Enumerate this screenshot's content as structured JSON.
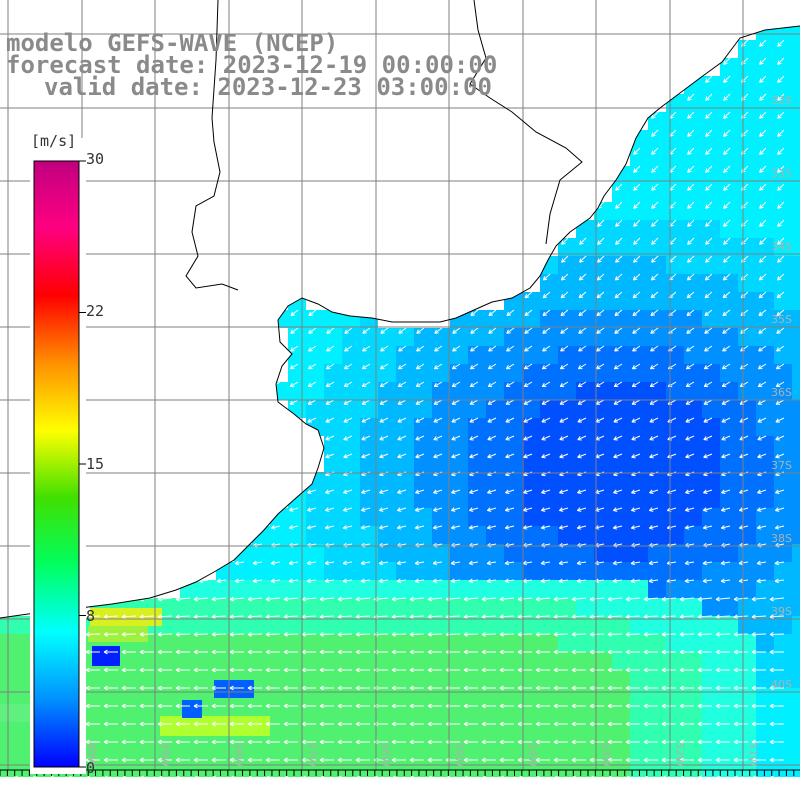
{
  "header": {
    "line1": "modelo GEFS-WAVE (NCEP)",
    "line2": "forecast date: 2023-12-19 00:00:00",
    "line3": "valid date: 2023-12-23 03:00:00"
  },
  "colorbar": {
    "unit": "[m/s]",
    "min": 0,
    "max": 30,
    "tick_labels": [
      "30",
      "22",
      "15",
      "8",
      "0"
    ],
    "tick_values": [
      30,
      22.5,
      15,
      7.5,
      0
    ],
    "colors": [
      "#0000ff",
      "#0090ff",
      "#00ffff",
      "#00ff60",
      "#40e000",
      "#ffff00",
      "#ff9000",
      "#ff0000",
      "#ff0080",
      "#c00080"
    ]
  },
  "map": {
    "lat_labels": [
      "32S",
      "33S",
      "34S",
      "35S",
      "36S",
      "37S",
      "38S",
      "39S",
      "40S"
    ],
    "lon_labels": [
      "60W",
      "59W",
      "58W",
      "57W",
      "56W",
      "55W",
      "54W",
      "53W",
      "52W",
      "51W"
    ],
    "colors": {
      "land": "#ffffff",
      "coast": "#000000",
      "grid": "#7f7f7f",
      "arrow": "#ffffff",
      "label": "#b0b0b0"
    }
  }
}
